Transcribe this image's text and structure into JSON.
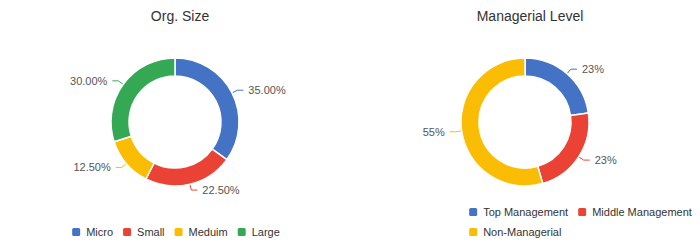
{
  "chart_data": [
    {
      "type": "pie",
      "title": "Org. Size",
      "categories": [
        "Micro",
        "Small",
        "Meduim",
        "Large"
      ],
      "values": [
        35.0,
        22.5,
        12.5,
        30.0
      ],
      "value_labels": [
        "35.00%",
        "22.50%",
        "12.50%",
        "30.00%"
      ],
      "colors": [
        "#4472C4",
        "#EA4335",
        "#FBBC04",
        "#34A853"
      ],
      "data_labels": true,
      "legend": "bottom"
    },
    {
      "type": "pie",
      "title": "Managerial Level",
      "categories": [
        "Top Management",
        "Middle Management",
        "Non-Managerial"
      ],
      "values": [
        23,
        23,
        55
      ],
      "value_labels": [
        "23%",
        "23%",
        "55%"
      ],
      "colors": [
        "#4472C4",
        "#EA4335",
        "#FBBC04"
      ],
      "data_labels": true,
      "legend": "bottom"
    }
  ]
}
